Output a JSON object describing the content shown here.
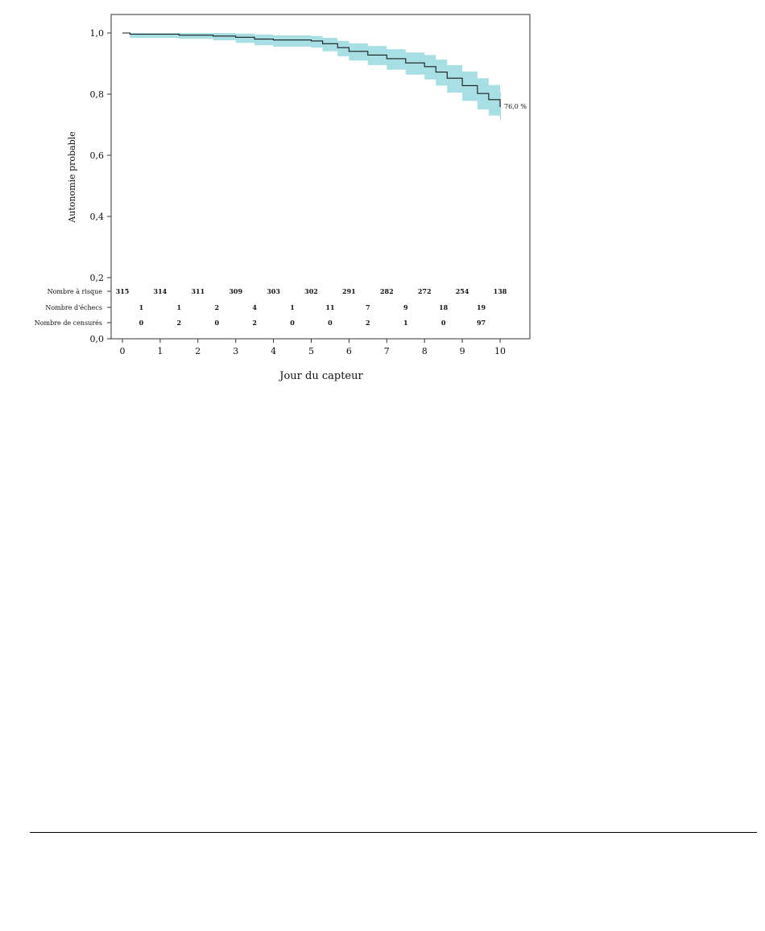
{
  "chart_data": {
    "type": "line",
    "title": "",
    "xlabel": "Jour du capteur",
    "ylabel": "Autonomie probable",
    "xlim": [
      0,
      10.8
    ],
    "ylim": [
      0,
      1.05
    ],
    "x_ticks": [
      0,
      1,
      2,
      3,
      4,
      5,
      6,
      7,
      8,
      9,
      10
    ],
    "x_tick_labels": [
      "0",
      "1",
      "2",
      "3",
      "4",
      "5",
      "6",
      "7",
      "8",
      "9",
      "10"
    ],
    "y_ticks": [
      0,
      0.2,
      0.4,
      0.6,
      0.8,
      1.0
    ],
    "y_tick_labels": [
      "0,0",
      "0,2",
      "0,4",
      "0,6",
      "0,8",
      "1,0"
    ],
    "grid": false,
    "colors": {
      "line": "#1a1a1a",
      "band": "#a8dfe4",
      "axis": "#333333"
    },
    "series": [
      {
        "x": [
          0,
          0.2,
          1.5,
          2.4,
          3.0,
          3.5,
          4.0,
          5.0,
          5.3,
          5.7,
          6.0,
          6.5,
          7.0,
          7.5,
          8.0,
          8.3,
          8.6,
          9.0,
          9.4,
          9.7,
          10.0
        ],
        "y": [
          1.0,
          0.996,
          0.993,
          0.99,
          0.986,
          0.98,
          0.977,
          0.974,
          0.965,
          0.952,
          0.94,
          0.928,
          0.916,
          0.902,
          0.89,
          0.872,
          0.852,
          0.828,
          0.802,
          0.782,
          0.76
        ],
        "y_lower": [
          1.0,
          0.984,
          0.981,
          0.976,
          0.968,
          0.96,
          0.955,
          0.952,
          0.94,
          0.924,
          0.91,
          0.895,
          0.88,
          0.864,
          0.848,
          0.828,
          0.805,
          0.778,
          0.75,
          0.73,
          0.715
        ],
        "y_upper": [
          1.0,
          1.0,
          1.0,
          1.0,
          0.998,
          0.995,
          0.992,
          0.99,
          0.984,
          0.974,
          0.966,
          0.957,
          0.947,
          0.936,
          0.928,
          0.913,
          0.895,
          0.874,
          0.852,
          0.83,
          0.807
        ]
      }
    ],
    "end_annotation": "76,0 %",
    "risk_table": [
      {
        "label": "Nombre à risque",
        "x": [
          0,
          1,
          2,
          3,
          4,
          5,
          6,
          7,
          8,
          9,
          10
        ],
        "values": [
          "315",
          "314",
          "311",
          "309",
          "303",
          "302",
          "291",
          "282",
          "272",
          "254",
          "138"
        ]
      },
      {
        "label": "Nombre d'échecs",
        "x": [
          0.5,
          1.5,
          2.5,
          3.5,
          4.5,
          5.5,
          6.5,
          7.5,
          8.5,
          9.5
        ],
        "values": [
          "1",
          "1",
          "2",
          "4",
          "1",
          "11",
          "7",
          "9",
          "18",
          "19"
        ]
      },
      {
        "label": "Nombre de censurés",
        "x": [
          0.5,
          1.5,
          2.5,
          3.5,
          4.5,
          5.5,
          6.5,
          7.5,
          8.5,
          9.5
        ],
        "values": [
          "0",
          "2",
          "0",
          "2",
          "0",
          "0",
          "2",
          "1",
          "0",
          "97"
        ]
      }
    ]
  }
}
